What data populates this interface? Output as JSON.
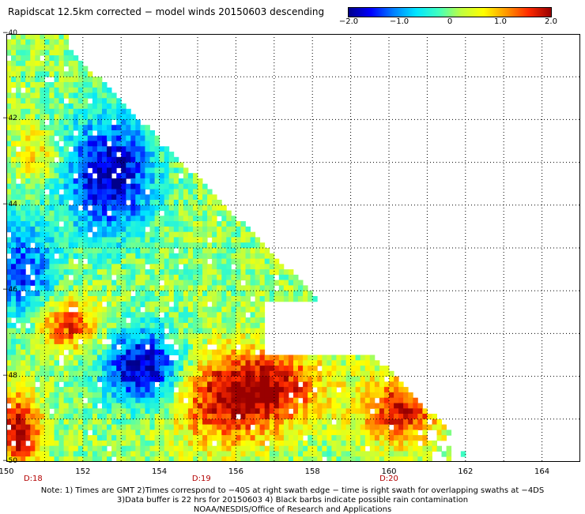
{
  "title": "Rapidscat 12.5km corrected − model winds 20150603 descending",
  "colorbar": {
    "labels": [
      "−2.0",
      "−1.0",
      "0",
      "1.0",
      "2.0"
    ],
    "values": [
      -2.0,
      -1.0,
      0,
      1.0,
      2.0
    ],
    "min": -2.0,
    "max": 2.0,
    "colors": [
      "#00008b",
      "#0000ff",
      "#0080ff",
      "#00e5ff",
      "#40ffbf",
      "#bfff40",
      "#ffff00",
      "#ff9900",
      "#ff2a00",
      "#990000"
    ]
  },
  "map": {
    "lon_range": [
      150,
      165
    ],
    "lat_range": [
      -50,
      -40
    ],
    "x_ticks": [
      "150",
      "152",
      "154",
      "156",
      "158",
      "160",
      "162",
      "164"
    ],
    "y_ticks": [
      "−40",
      "−42",
      "−44",
      "−46",
      "−48",
      "−50"
    ],
    "time_labels": [
      {
        "text": "D:18",
        "lon": 150.7
      },
      {
        "text": "D:19",
        "lon": 155.1
      },
      {
        "text": "D:20",
        "lon": 160.0
      }
    ],
    "grid": "dotted"
  },
  "notes": [
    "Note: 1) Times are GMT 2)Times correspond to −40S at right swath edge − time is right swath for overlapping swaths at −4DS",
    "3)Data buffer is 22 hrs for 20150603 4) Black barbs indicate possible rain contamination",
    "NOAA/NESDIS/Office of Research and Applications"
  ]
}
